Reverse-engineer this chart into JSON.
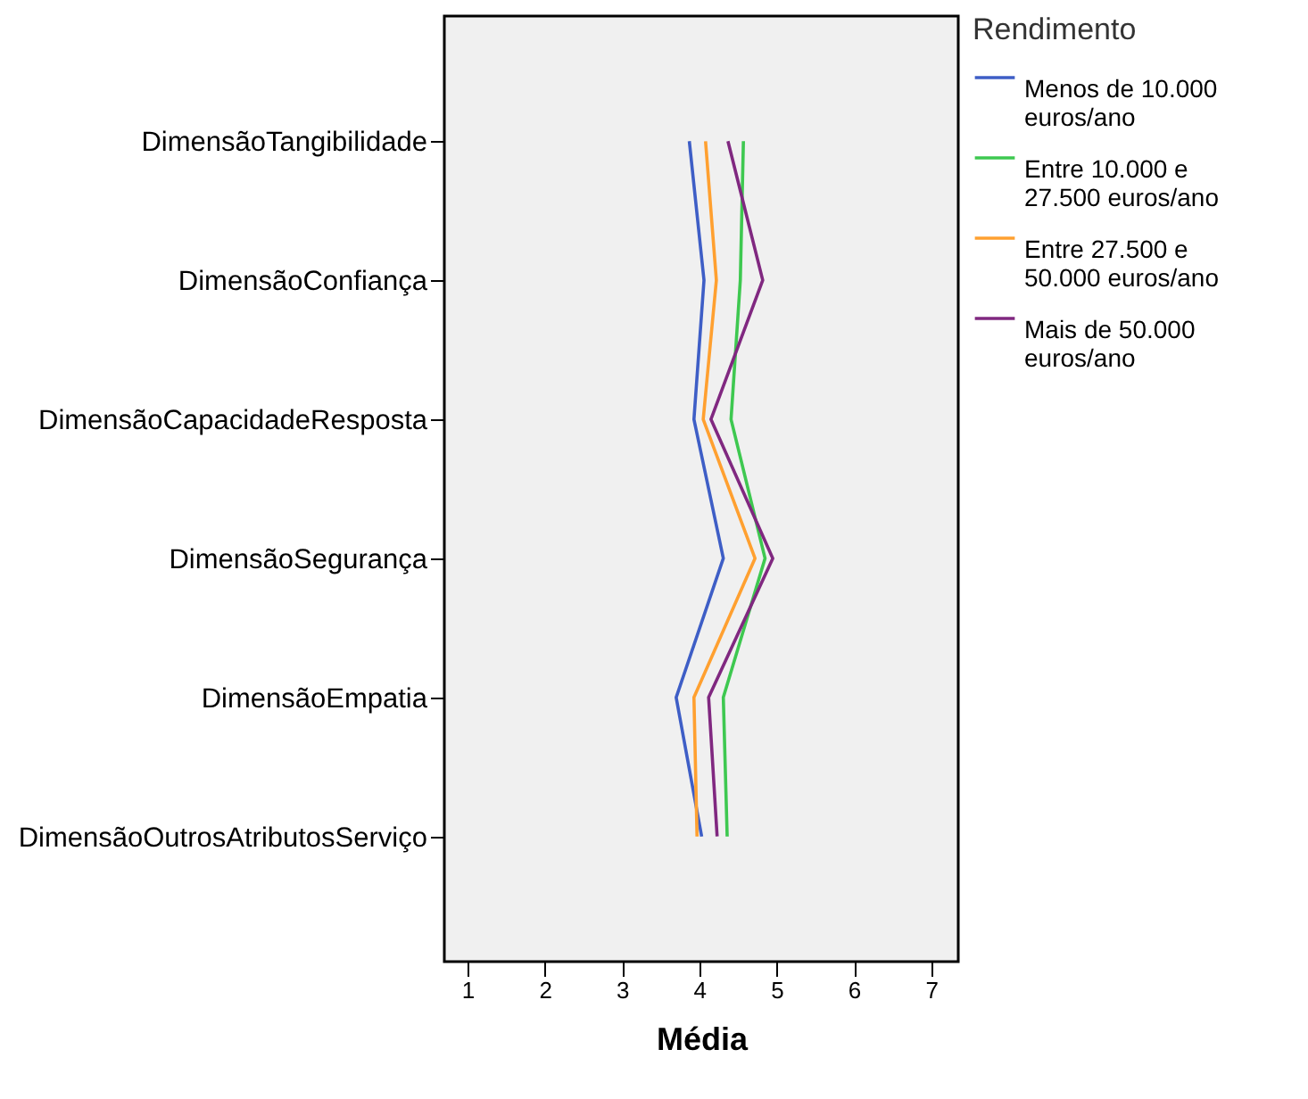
{
  "chart_data": {
    "type": "line",
    "orientation": "horizontal",
    "xlabel": "Média",
    "legend_title": "Rendimento",
    "legend": "top right",
    "grid": false,
    "marker": "none",
    "line_style": "solid",
    "categories": [
      "DimensãoTangibilidade",
      "DimensãoConfiança",
      "DimensãoCapacidadeResposta",
      "DimensãoSegurança",
      "DimensãoEmpatia",
      "DimensãoOutrosAtributosServiço"
    ],
    "xlim": [
      0.7,
      7.35
    ],
    "xticks": [
      1,
      2,
      3,
      4,
      5,
      6,
      7
    ],
    "series": [
      {
        "name": "Menos de 10.000 euros/ano",
        "color": "#3e5ec6",
        "values": [
          3.87,
          4.06,
          3.93,
          4.31,
          3.7,
          4.03
        ]
      },
      {
        "name": "Entre 10.000 e 27.500 euros/ano",
        "color": "#3ec850",
        "values": [
          4.57,
          4.53,
          4.41,
          4.85,
          4.31,
          4.36
        ]
      },
      {
        "name": "Entre 27.500 e 50.000 euros/ano",
        "color": "#ffa030",
        "values": [
          4.08,
          4.22,
          4.05,
          4.72,
          3.93,
          3.97
        ]
      },
      {
        "name": "Mais de 50.000 euros/ano",
        "color": "#802880",
        "values": [
          4.37,
          4.82,
          4.15,
          4.95,
          4.12,
          4.23
        ]
      }
    ]
  }
}
